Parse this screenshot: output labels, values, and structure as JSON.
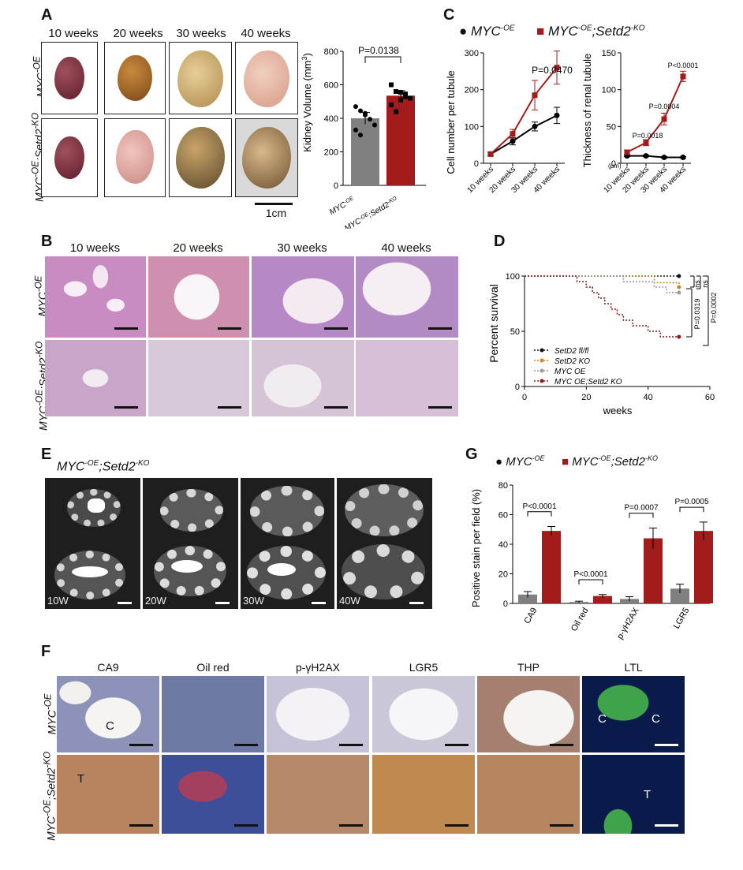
{
  "panels": {
    "A": "A",
    "B": "B",
    "C": "C",
    "D": "D",
    "E": "E",
    "F": "F",
    "G": "G"
  },
  "panelA": {
    "timepoints": [
      "10 weeks",
      "20 weeks",
      "30 weeks",
      "40 weeks"
    ],
    "row1": "MYC-OE",
    "row2": "MYC-OE;Setd2-KO",
    "scale": "1cm"
  },
  "colors": {
    "oe": "#808080",
    "ko": "#a31b1b",
    "black": "#111111",
    "orange": "#c98a2a",
    "gray": "#9a9a9a",
    "darkred": "#8b1a1a"
  },
  "chart_data": [
    {
      "type": "bar",
      "id": "kidney-volume",
      "ylabel": "Kidney Volume (mm3)",
      "categories": [
        "MYC-OE",
        "MYC-OE;Setd2-KO"
      ],
      "values": [
        400,
        535
      ],
      "errors": [
        35,
        30
      ],
      "points": [
        [
          470,
          445,
          430,
          395,
          360,
          330,
          300,
          420
        ],
        [
          600,
          560,
          555,
          530,
          520,
          480,
          440,
          510,
          545
        ]
      ],
      "ylim": [
        0,
        800
      ],
      "yticks": [
        0,
        200,
        400,
        600,
        800
      ],
      "annotation": "P=0.0138"
    },
    {
      "type": "line",
      "id": "cell-number",
      "ylabel": "Cell number per tubule",
      "categories": [
        "10 weeks",
        "20 weeks",
        "30 weeks",
        "40 weeks"
      ],
      "series": [
        {
          "name": "MYC-OE",
          "values": [
            25,
            60,
            100,
            130
          ],
          "errors": [
            5,
            10,
            12,
            22
          ]
        },
        {
          "name": "MYC-OE;Setd2-KO",
          "values": [
            25,
            80,
            185,
            260
          ],
          "errors": [
            5,
            12,
            40,
            45
          ]
        }
      ],
      "ylim": [
        0,
        300
      ],
      "yticks": [
        0,
        100,
        200,
        300
      ],
      "annotation": "P=0.0470"
    },
    {
      "type": "line",
      "id": "thickness",
      "ylabel": "Thickness of renal tubule",
      "unit": "(μm)",
      "categories": [
        "10 weeks",
        "20 weeks",
        "30 weeks",
        "40 weeks"
      ],
      "series": [
        {
          "name": "MYC-OE",
          "values": [
            10,
            10,
            8,
            8
          ],
          "errors": [
            1,
            1,
            1,
            1
          ]
        },
        {
          "name": "MYC-OE;Setd2-KO",
          "values": [
            15,
            28,
            60,
            118
          ],
          "errors": [
            3,
            4,
            8,
            7
          ]
        }
      ],
      "ylim": [
        0,
        150
      ],
      "yticks": [
        0,
        50,
        100,
        150
      ],
      "annotations": [
        "P=0.0018",
        "P=0.0004",
        "P<0.0001"
      ]
    },
    {
      "type": "line",
      "id": "survival",
      "xlabel": "weeks",
      "ylabel": "Percent survival",
      "xlim": [
        0,
        60
      ],
      "ylim": [
        0,
        100
      ],
      "xticks": [
        0,
        20,
        40,
        60
      ],
      "yticks": [
        0,
        50,
        100
      ],
      "series": [
        {
          "name": "SetD2 fl/fl",
          "steps": [
            [
              0,
              100
            ],
            [
              50,
              100
            ]
          ]
        },
        {
          "name": "SetD2 KO",
          "steps": [
            [
              0,
              100
            ],
            [
              42,
              100
            ],
            [
              42,
              94
            ],
            [
              50,
              94
            ],
            [
              50,
              90
            ]
          ]
        },
        {
          "name": "MYC OE",
          "steps": [
            [
              0,
              100
            ],
            [
              32,
              100
            ],
            [
              32,
              95
            ],
            [
              42,
              95
            ],
            [
              42,
              90
            ],
            [
              46,
              90
            ],
            [
              46,
              85
            ],
            [
              50,
              85
            ]
          ]
        },
        {
          "name": "MYC OE;Setd2 KO",
          "steps": [
            [
              0,
              100
            ],
            [
              17,
              100
            ],
            [
              17,
              95
            ],
            [
              20,
              95
            ],
            [
              20,
              90
            ],
            [
              22,
              90
            ],
            [
              22,
              85
            ],
            [
              24,
              85
            ],
            [
              24,
              80
            ],
            [
              26,
              80
            ],
            [
              26,
              75
            ],
            [
              28,
              75
            ],
            [
              28,
              70
            ],
            [
              30,
              70
            ],
            [
              30,
              65
            ],
            [
              32,
              65
            ],
            [
              32,
              60
            ],
            [
              35,
              60
            ],
            [
              35,
              55
            ],
            [
              40,
              55
            ],
            [
              40,
              50
            ],
            [
              44,
              50
            ],
            [
              44,
              45
            ],
            [
              50,
              45
            ]
          ]
        }
      ],
      "annotations": [
        "ns",
        "ns",
        "P=0.0319",
        "P=0.0002"
      ]
    },
    {
      "type": "bar",
      "id": "positive-stain",
      "ylabel": "Positive stain per field (%)",
      "categories": [
        "CA9",
        "Oil red",
        "p-γH2AX",
        "LGR5"
      ],
      "series": [
        {
          "name": "MYC-OE",
          "values": [
            6,
            1,
            3,
            10
          ],
          "errors": [
            2,
            0.5,
            1.5,
            3
          ]
        },
        {
          "name": "MYC-OE;Setd2-KO",
          "values": [
            49,
            5,
            44,
            49
          ],
          "errors": [
            3,
            1,
            7,
            6
          ]
        }
      ],
      "ylim": [
        0,
        80
      ],
      "yticks": [
        0,
        20,
        40,
        60,
        80
      ],
      "annotations": [
        "P<0.0001",
        "P<0.0001",
        "P=0.0007",
        "P=0.0005"
      ]
    }
  ],
  "legendC": {
    "s1": "MYC",
    "s1sup": "-OE",
    "s2": "MYC",
    "s2sup": "-OE",
    "s2b": ";Setd2",
    "s2bsup": "-KO"
  },
  "panelB": {
    "timepoints": [
      "10 weeks",
      "20 weeks",
      "30 weeks",
      "40 weeks"
    ]
  },
  "panelD": {
    "legend": [
      "SetD2 fl/fl",
      "SetD2 KO",
      "MYC OE",
      "MYC OE;Setd2 KO"
    ]
  },
  "panelE": {
    "title": "MYC-OE;Setd2-KO",
    "labels": [
      "10W",
      "20W",
      "30W",
      "40W"
    ]
  },
  "panelF": {
    "stains": [
      "CA9",
      "Oil red",
      "p-γH2AX",
      "LGR5",
      "THP",
      "LTL"
    ],
    "markC": "C",
    "markT": "T"
  },
  "ticks": {
    "y800": "800",
    "y600": "600",
    "y400": "400",
    "y200": "200",
    "y0": "0",
    "y300": "300",
    "y100": "100",
    "y150": "150",
    "y50": "50",
    "y80": "80",
    "y60": "60",
    "y40": "40",
    "y20": "20",
    "x0": "0",
    "x20": "20",
    "x40": "40",
    "x60": "60"
  }
}
